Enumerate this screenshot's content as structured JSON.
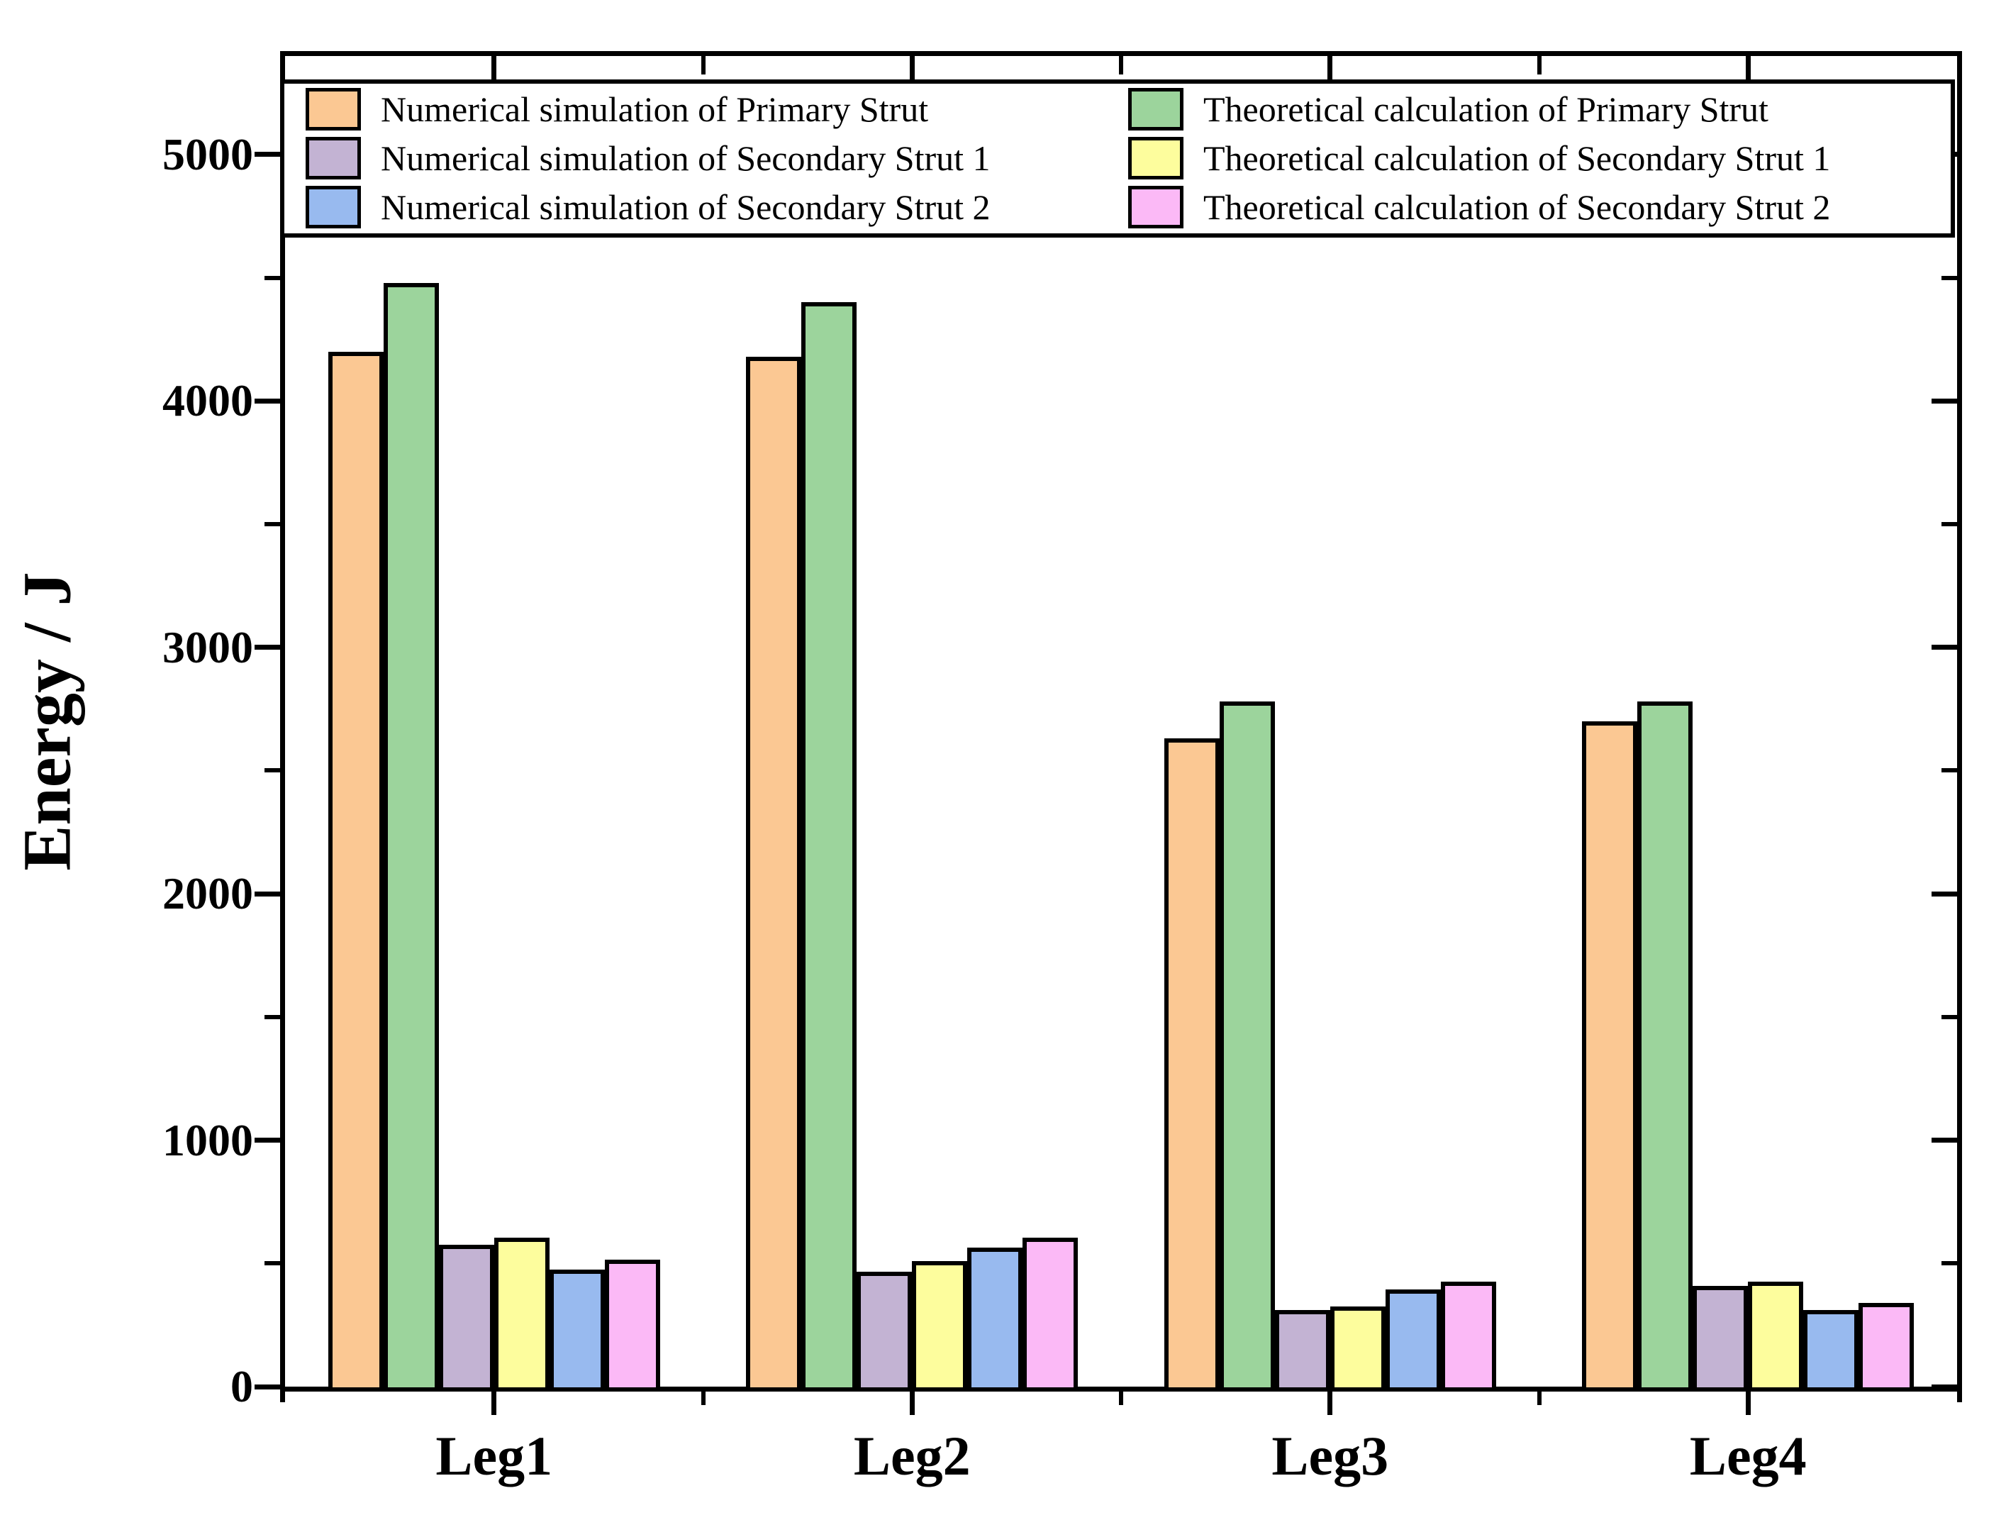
{
  "figure": {
    "background": "#ffffff",
    "axis_color": "#000000"
  },
  "y_axis": {
    "title": "Energy / J",
    "tick_labels": [
      "0",
      "1000",
      "2000",
      "3000",
      "4000",
      "5000"
    ],
    "tick_values": [
      0,
      1000,
      2000,
      3000,
      4000,
      5000
    ],
    "minor_tick_values": [
      500,
      1500,
      2500,
      3500,
      4500
    ]
  },
  "x_axis": {
    "categories": [
      "Leg1",
      "Leg2",
      "Leg3",
      "Leg4"
    ]
  },
  "legend": {
    "column_order": [
      [
        0,
        2,
        4
      ],
      [
        1,
        3,
        5
      ]
    ]
  },
  "chart_data": {
    "type": "bar",
    "categories": [
      "Leg1",
      "Leg2",
      "Leg3",
      "Leg4"
    ],
    "series": [
      {
        "name": "Numerical simulation of Primary Strut",
        "color": "#FBC893",
        "values": [
          4200,
          4180,
          2630,
          2700
        ]
      },
      {
        "name": "Theoretical calculation of Primary Strut",
        "color": "#9CD49C",
        "values": [
          4480,
          4400,
          2780,
          2780
        ]
      },
      {
        "name": "Numerical simulation of Secondary Strut 1",
        "color": "#C3B3D3",
        "values": [
          575,
          465,
          310,
          410
        ]
      },
      {
        "name": "Theoretical calculation of Secondary Strut 1",
        "color": "#FDFD9D",
        "values": [
          605,
          510,
          325,
          425
        ]
      },
      {
        "name": "Numerical simulation of Secondary Strut 2",
        "color": "#98BAEF",
        "values": [
          475,
          565,
          395,
          310
        ]
      },
      {
        "name": "Theoretical calculation of Secondary Strut 2",
        "color": "#FBB9F6",
        "values": [
          515,
          605,
          425,
          340
        ]
      }
    ],
    "title": "",
    "xlabel": "",
    "ylabel": "Energy / J",
    "ylim": [
      0,
      5400
    ],
    "grid": false,
    "legend_position": "top-inside",
    "bar_order_note": "bars left-to-right in each group follow series order above"
  }
}
